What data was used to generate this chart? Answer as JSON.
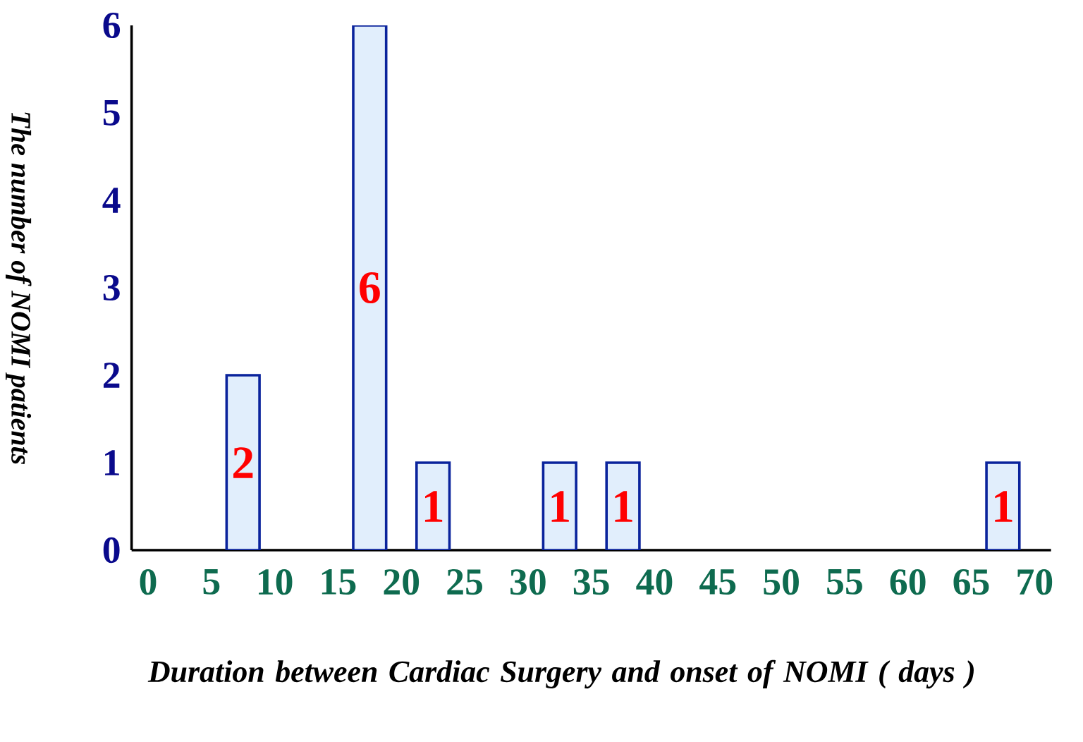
{
  "chart_data": {
    "type": "bar",
    "xlabel": "Duration between Cardiac Surgery and onset of NOMI ( days )",
    "ylabel": "The number of NOMI patients",
    "x": [
      7.5,
      17.5,
      22.5,
      32.5,
      37.5,
      67.5
    ],
    "values": [
      2,
      6,
      1,
      1,
      1,
      1
    ],
    "color": "#e1eefc",
    "xlim": [
      -1.3,
      71.3
    ],
    "xticks": [
      0,
      5,
      10,
      15,
      20,
      25,
      30,
      35,
      40,
      45,
      50,
      55,
      60,
      65,
      70
    ],
    "ylim": [
      0,
      6
    ],
    "yticks": [
      0,
      1,
      2,
      3,
      4,
      5,
      6
    ],
    "data_labels": true
  }
}
